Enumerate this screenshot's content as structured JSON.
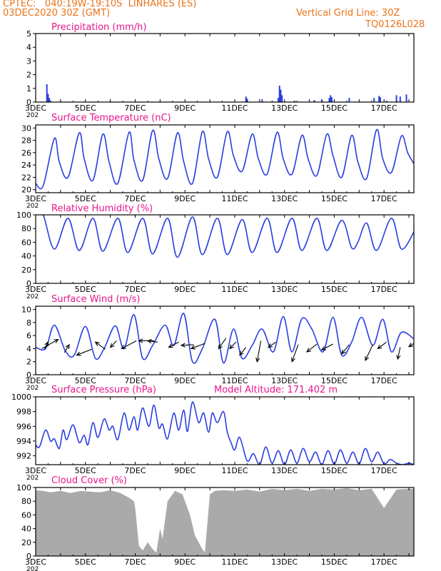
{
  "header": {
    "line1": "CPTEC:   040:19W-19:10S  LINHARES (ES)",
    "line2": "03DEC2020 30Z (GMT)",
    "grid_note": "Vertical Grid Line: 30Z",
    "code": "TQ0126L028",
    "color": "#e8731a"
  },
  "colors": {
    "title": "#e8158c",
    "series": "#2a3fe0",
    "cloud": "#aaaaaa",
    "axis": "#000000"
  },
  "x_ticks": [
    "3DEC",
    "5DEC",
    "7DEC",
    "9DEC",
    "11DEC",
    "13DEC",
    "15DEC",
    "17DEC"
  ],
  "year_fragment": "202",
  "chart_data": [
    {
      "id": "precip",
      "type": "bar",
      "title": "Precipitation (mm/h)",
      "ylim": [
        0,
        5
      ],
      "yticks": [
        0,
        1,
        2,
        3,
        4,
        5
      ],
      "x_range_days": [
        3,
        18.2
      ],
      "points": [
        [
          3.45,
          1.3
        ],
        [
          3.5,
          0.6
        ],
        [
          3.55,
          0.3
        ],
        [
          3.6,
          0.1
        ],
        [
          4.0,
          0.04
        ],
        [
          6.0,
          0.04
        ],
        [
          8.0,
          0.04
        ],
        [
          11.45,
          0.4
        ],
        [
          11.5,
          0.25
        ],
        [
          12.1,
          0.2
        ],
        [
          12.75,
          0.3
        ],
        [
          12.8,
          1.2
        ],
        [
          12.85,
          0.9
        ],
        [
          12.9,
          0.5
        ],
        [
          13.4,
          0.1
        ],
        [
          14.2,
          0.15
        ],
        [
          14.5,
          0.2
        ],
        [
          14.8,
          0.3
        ],
        [
          14.85,
          0.5
        ],
        [
          14.9,
          0.35
        ],
        [
          15.6,
          0.3
        ],
        [
          16.6,
          0.3
        ],
        [
          16.8,
          0.45
        ],
        [
          16.85,
          0.35
        ],
        [
          17.1,
          0.1
        ],
        [
          17.5,
          0.5
        ],
        [
          17.65,
          0.4
        ],
        [
          17.9,
          0.55
        ]
      ]
    },
    {
      "id": "temp",
      "type": "line",
      "title": "Surface Temperature (nC)",
      "ylim": [
        19.5,
        30.5
      ],
      "yticks": [
        20,
        22,
        24,
        26,
        28,
        30
      ],
      "x_range_days": [
        3,
        18.2
      ],
      "x": [
        3.0,
        3.3,
        3.75,
        3.95,
        4.3,
        4.75,
        4.95,
        5.3,
        5.7,
        5.95,
        6.3,
        6.75,
        6.95,
        7.3,
        7.7,
        7.95,
        8.3,
        8.7,
        8.95,
        9.3,
        9.7,
        9.95,
        10.3,
        10.7,
        10.95,
        11.3,
        11.7,
        11.95,
        12.3,
        12.7,
        12.95,
        13.3,
        13.7,
        13.95,
        14.3,
        14.7,
        14.95,
        15.3,
        15.7,
        15.95,
        16.3,
        16.7,
        16.95,
        17.3,
        17.7,
        17.95,
        18.2
      ],
      "y": [
        21.0,
        20.6,
        28.3,
        24.5,
        22.0,
        29.2,
        25.0,
        21.5,
        29.0,
        24.5,
        21.0,
        29.3,
        24.8,
        21.5,
        29.6,
        25.0,
        21.8,
        29.2,
        24.5,
        21.0,
        29.4,
        25.0,
        22.0,
        29.4,
        25.5,
        23.0,
        29.0,
        25.0,
        22.5,
        29.3,
        25.0,
        22.5,
        28.8,
        25.0,
        22.3,
        29.0,
        25.5,
        22.0,
        28.8,
        24.5,
        21.8,
        29.7,
        25.0,
        22.8,
        28.7,
        26.0,
        24.2
      ]
    },
    {
      "id": "rh",
      "type": "line",
      "title": "Relative Humidity (%)",
      "ylim": [
        0,
        100
      ],
      "yticks": [
        0,
        20,
        40,
        60,
        80,
        100
      ],
      "x_range_days": [
        3,
        18.2
      ],
      "x": [
        3.0,
        3.3,
        3.75,
        4.3,
        4.75,
        5.3,
        5.7,
        6.3,
        6.7,
        7.3,
        7.7,
        8.3,
        8.7,
        9.3,
        9.7,
        10.3,
        10.7,
        11.3,
        11.7,
        12.3,
        12.7,
        13.3,
        13.7,
        14.3,
        14.7,
        15.3,
        15.7,
        15.95,
        16.3,
        16.7,
        17.3,
        17.7,
        18.2
      ],
      "y": [
        100,
        100,
        50,
        95,
        48,
        95,
        47,
        95,
        45,
        95,
        43,
        95,
        38,
        97,
        42,
        95,
        42,
        93,
        45,
        95,
        45,
        95,
        48,
        95,
        48,
        92,
        52,
        60,
        88,
        48,
        95,
        50,
        75
      ]
    },
    {
      "id": "wind",
      "type": "line",
      "title": "Surface Wind (m/s)",
      "ylim": [
        0,
        10.5
      ],
      "yticks": [
        0,
        2,
        4,
        6,
        8,
        10
      ],
      "x_range_days": [
        3,
        18.2
      ],
      "x": [
        3.0,
        3.4,
        3.75,
        4.2,
        4.55,
        5.0,
        5.4,
        5.75,
        6.2,
        6.55,
        6.95,
        7.3,
        7.7,
        8.2,
        8.55,
        8.95,
        9.3,
        9.7,
        10.2,
        10.55,
        10.95,
        11.3,
        11.7,
        12.1,
        12.55,
        12.95,
        13.3,
        13.7,
        14.1,
        14.55,
        14.95,
        15.3,
        15.7,
        16.1,
        16.55,
        16.95,
        17.3,
        17.7,
        18.2
      ],
      "y": [
        4.2,
        4.0,
        7.6,
        3.6,
        3.0,
        7.4,
        2.5,
        4.0,
        7.5,
        4.0,
        9.2,
        2.5,
        4.5,
        7.6,
        4.5,
        9.4,
        2.0,
        4.0,
        8.5,
        1.8,
        7.0,
        2.5,
        4.5,
        7.0,
        3.5,
        8.9,
        3.5,
        8.6,
        7.0,
        3.5,
        8.8,
        3.0,
        5.0,
        8.8,
        4.5,
        8.5,
        3.5,
        6.5,
        5.5
      ],
      "arrows": [
        [
          3.5,
          5.0,
          3.35,
          3.9
        ],
        [
          3.9,
          5.4,
          3.25,
          4.0
        ],
        [
          4.35,
          4.6,
          4.15,
          3.4
        ],
        [
          4.65,
          3.0,
          5.25,
          3.9
        ],
        [
          5.4,
          5.0,
          5.8,
          3.9
        ],
        [
          6.0,
          4.2,
          6.25,
          5.2
        ],
        [
          6.45,
          4.0,
          7.05,
          5.2
        ],
        [
          7.15,
          5.2,
          7.75,
          5.2
        ],
        [
          7.5,
          5.2,
          7.9,
          5.0
        ],
        [
          8.35,
          4.2,
          8.75,
          5.0
        ],
        [
          8.85,
          4.5,
          9.35,
          4.6
        ],
        [
          9.25,
          4.0,
          9.8,
          4.8
        ],
        [
          10.35,
          4.0,
          10.65,
          5.6
        ],
        [
          10.8,
          4.0,
          11.05,
          5.0
        ],
        [
          11.2,
          3.0,
          11.45,
          4.2
        ],
        [
          11.9,
          2.0,
          12.05,
          5.2
        ],
        [
          12.35,
          4.2,
          12.65,
          5.0
        ],
        [
          13.3,
          2.0,
          13.55,
          4.6
        ],
        [
          13.9,
          3.5,
          14.3,
          4.7
        ],
        [
          14.5,
          3.8,
          14.95,
          4.7
        ],
        [
          15.3,
          3.2,
          15.6,
          4.6
        ],
        [
          16.25,
          2.2,
          16.55,
          4.6
        ],
        [
          16.75,
          4.0,
          17.1,
          5.0
        ],
        [
          17.55,
          2.4,
          17.65,
          4.2
        ],
        [
          18.0,
          4.3,
          18.2,
          4.8
        ]
      ]
    },
    {
      "id": "pressure",
      "type": "line",
      "title": "Surface Pressure (hPa)",
      "subtitle": "Model Altitude: 171.402 m",
      "ylim": [
        990.8,
        1000
      ],
      "yticks": [
        992,
        994,
        996,
        998,
        1000
      ],
      "x_range_days": [
        3,
        18.2
      ],
      "x": [
        3.0,
        3.15,
        3.4,
        3.6,
        3.75,
        3.95,
        4.1,
        4.25,
        4.5,
        4.75,
        4.95,
        5.1,
        5.3,
        5.5,
        5.75,
        5.95,
        6.1,
        6.3,
        6.55,
        6.75,
        6.95,
        7.1,
        7.3,
        7.55,
        7.75,
        7.95,
        8.1,
        8.3,
        8.55,
        8.75,
        8.95,
        9.1,
        9.3,
        9.55,
        9.75,
        9.95,
        10.1,
        10.3,
        10.55,
        10.7,
        10.85,
        11.0,
        11.2,
        11.5,
        11.75,
        12.0,
        12.25,
        12.5,
        12.75,
        13.0,
        13.25,
        13.5,
        13.75,
        14.0,
        14.25,
        14.5,
        14.75,
        15.0,
        15.25,
        15.5,
        15.75,
        16.0,
        16.25,
        16.5,
        16.75,
        17.0,
        17.25,
        17.5,
        17.75,
        18.0,
        18.2
      ],
      "y": [
        993.5,
        993.2,
        995.5,
        994.0,
        994.3,
        993.0,
        995.5,
        994.2,
        996.2,
        993.8,
        994.8,
        993.5,
        996.5,
        994.5,
        997.0,
        995.5,
        996.0,
        994.2,
        997.8,
        995.5,
        997.3,
        995.5,
        998.5,
        996.0,
        998.9,
        995.8,
        996.3,
        994.3,
        997.8,
        995.5,
        998.2,
        995.3,
        999.3,
        996.5,
        997.8,
        995.2,
        997.8,
        996.5,
        998.0,
        995.2,
        993.8,
        992.8,
        994.5,
        991.3,
        992.3,
        990.8,
        993.2,
        991.0,
        992.7,
        990.8,
        992.8,
        991.0,
        993.0,
        991.2,
        992.5,
        990.8,
        992.7,
        990.9,
        992.8,
        991.0,
        992.5,
        990.9,
        993.0,
        991.2,
        992.5,
        990.9,
        991.5,
        991.0,
        990.8,
        991.0,
        990.8
      ]
    },
    {
      "id": "cloud",
      "type": "area",
      "title": "Cloud Cover (%)",
      "ylim": [
        0,
        100
      ],
      "yticks": [
        0,
        20,
        40,
        60,
        80,
        100
      ],
      "x_range_days": [
        3,
        18.2
      ],
      "x": [
        3.0,
        3.3,
        3.6,
        4.0,
        4.4,
        4.8,
        5.2,
        5.6,
        6.0,
        6.4,
        6.75,
        6.95,
        7.0,
        7.15,
        7.3,
        7.5,
        7.7,
        7.85,
        8.0,
        8.1,
        8.3,
        8.6,
        8.9,
        9.2,
        9.4,
        9.7,
        9.8,
        10.0,
        10.2,
        10.5,
        11.0,
        11.5,
        12.0,
        12.5,
        13.0,
        13.5,
        14.0,
        14.5,
        15.0,
        15.5,
        16.0,
        16.5,
        17.0,
        17.5,
        18.0,
        18.2
      ],
      "y": [
        96,
        95,
        93,
        95,
        92,
        95,
        94,
        93,
        96,
        92,
        85,
        80,
        70,
        15,
        8,
        20,
        10,
        5,
        40,
        25,
        80,
        95,
        90,
        60,
        30,
        10,
        5,
        90,
        95,
        96,
        95,
        97,
        94,
        98,
        96,
        98,
        95,
        98,
        97,
        99,
        96,
        98,
        70,
        97,
        98,
        98
      ]
    }
  ]
}
